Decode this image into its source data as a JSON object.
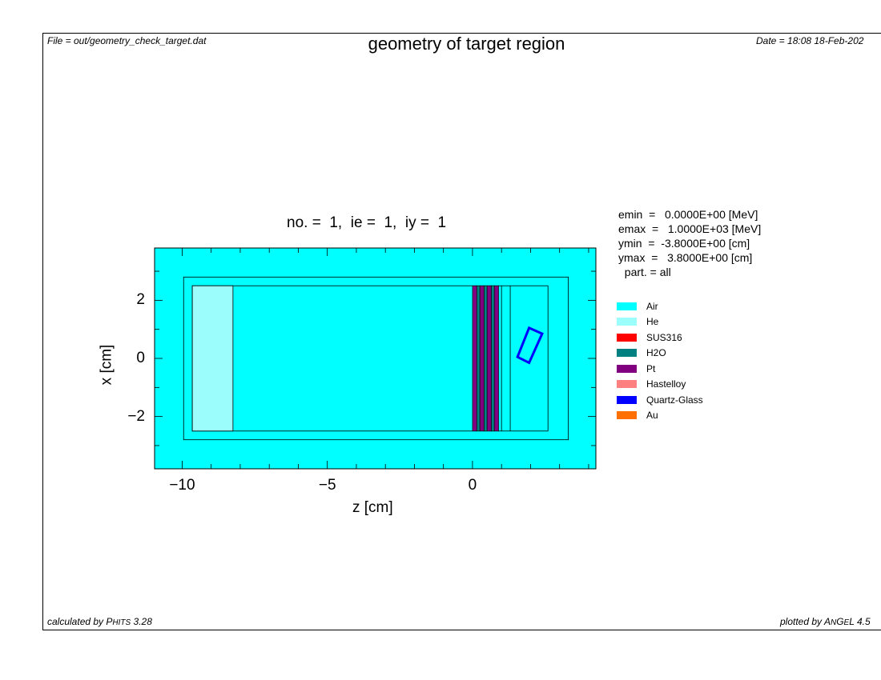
{
  "header": {
    "file": "File = out/geometry_check_target.dat",
    "title": "geometry of target region",
    "date": "Date = 18:08 18-Feb-202"
  },
  "footer": {
    "calc_prefix": "calculated by ",
    "calc_code_p": "P",
    "calc_code_rest": "HITS",
    "calc_version": " 3.28",
    "plot_prefix": "plotted by ",
    "plot_a": "A",
    "plot_ng": "N",
    "plot_g": "G",
    "plot_e": "E",
    "plot_l": "L",
    "plot_version": " 4.5"
  },
  "plot": {
    "subtitle": "no. =  1,  ie =  1,  iy =  1",
    "xlabel": "z [cm]",
    "ylabel": "x [cm]",
    "xlim": [
      -10.95,
      4.25
    ],
    "ylim": [
      -3.8,
      3.8
    ],
    "xticks": [
      {
        "v": -10,
        "label": "−10"
      },
      {
        "v": -5,
        "label": "−5"
      },
      {
        "v": 0,
        "label": "0"
      }
    ],
    "yticks": [
      {
        "v": 2,
        "label": "2"
      },
      {
        "v": 0,
        "label": "0"
      },
      {
        "v": -2,
        "label": "−2"
      }
    ]
  },
  "info": {
    "line1": "emin  =   0.0000E+00 [MeV]",
    "line2": "emax  =   1.0000E+03 [MeV]",
    "line3": "ymin  =  -3.8000E+00 [cm]",
    "line4": "ymax  =   3.8000E+00 [cm]",
    "line5": "  part. = all"
  },
  "legend": [
    {
      "name": "Air",
      "color": "#00ffff"
    },
    {
      "name": "He",
      "color": "#9cfdfd"
    },
    {
      "name": "SUS316",
      "color": "#ff0000"
    },
    {
      "name": "H2O",
      "color": "#008080"
    },
    {
      "name": "Pt",
      "color": "#800080"
    },
    {
      "name": "Hastelloy",
      "color": "#ff8080"
    },
    {
      "name": "Quartz-Glass",
      "color": "#0000ff"
    },
    {
      "name": "Au",
      "color": "#ff7000"
    }
  ],
  "colors": {
    "air": "#00ffff",
    "he": "#9cfdfd",
    "pt": "#800080",
    "h2o": "#008080",
    "quartz": "#0000ff"
  }
}
